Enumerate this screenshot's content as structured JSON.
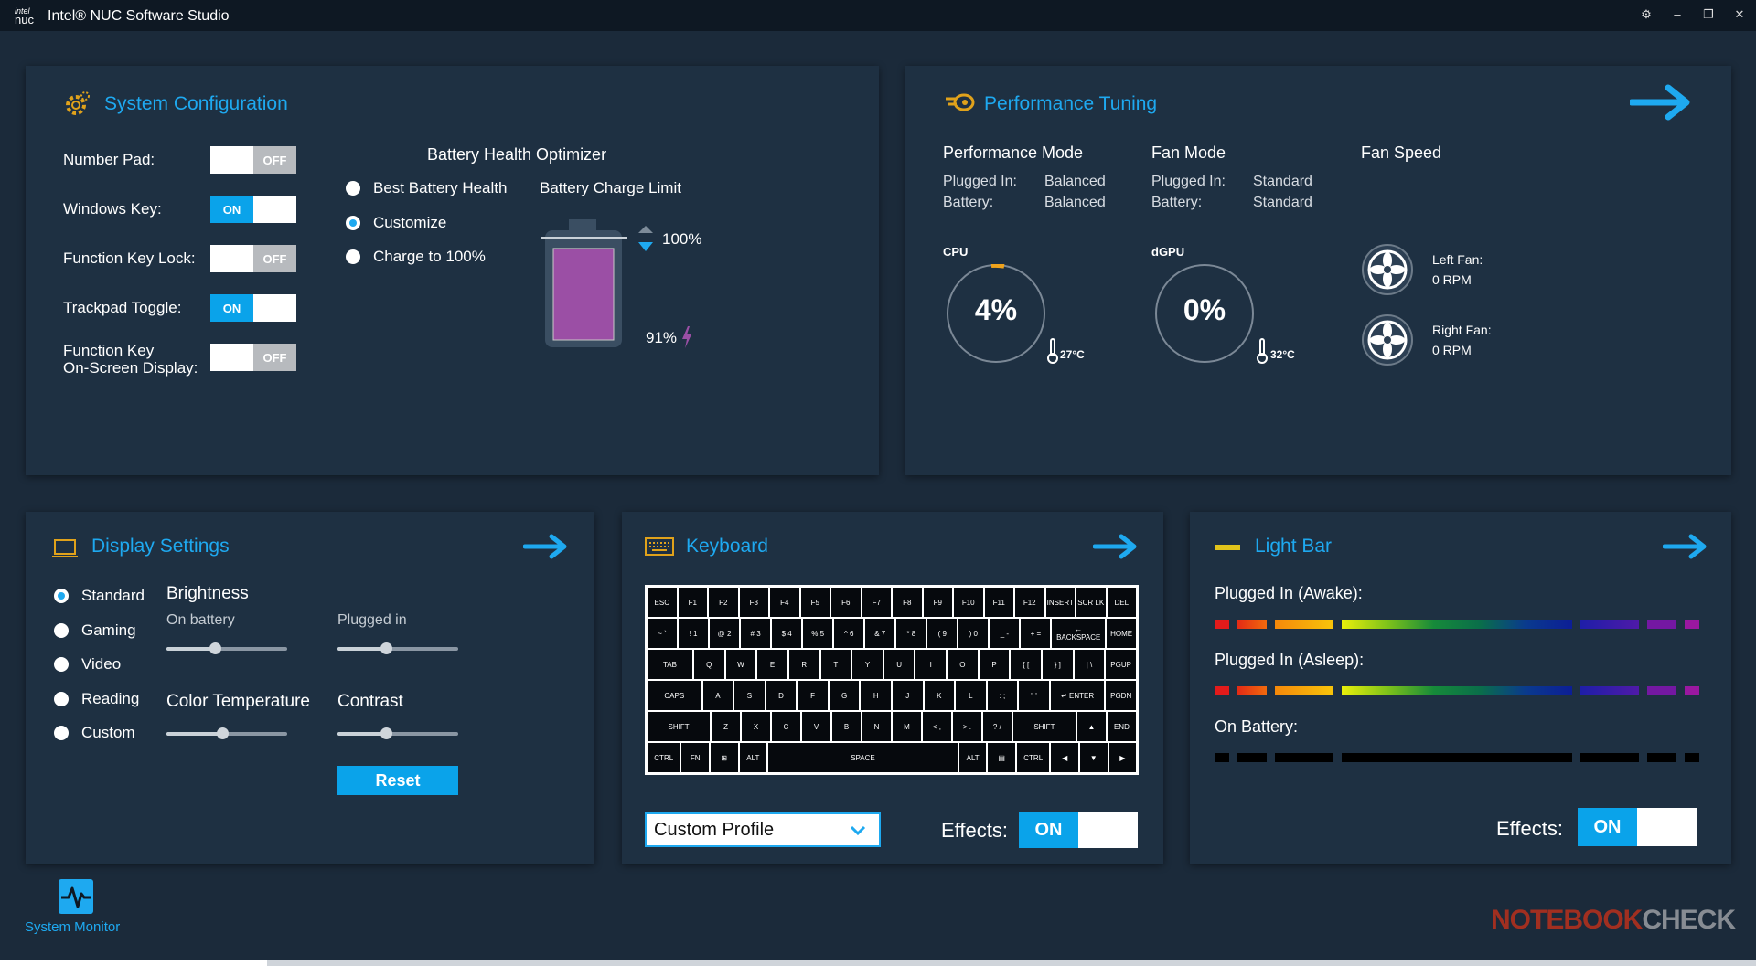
{
  "window": {
    "logo_top": "intel",
    "logo_bottom": "nuc",
    "title": "Intel® NUC Software Studio"
  },
  "system_config": {
    "title": "System Configuration",
    "toggles": [
      {
        "label": "Number Pad:",
        "state": "OFF"
      },
      {
        "label": "Windows Key:",
        "state": "ON"
      },
      {
        "label": "Function Key Lock:",
        "state": "OFF"
      },
      {
        "label": "Trackpad Toggle:",
        "state": "ON"
      },
      {
        "label_line1": "Function Key",
        "label_line2": "On-Screen Display:",
        "state": "OFF"
      }
    ],
    "battery": {
      "title": "Battery Health Optimizer",
      "options": [
        "Best Battery Health",
        "Customize",
        "Charge to 100%"
      ],
      "selected": "Customize",
      "charge_limit_label": "Battery Charge Limit",
      "limit_value": "100%",
      "current_value": "91%",
      "current_fraction": 0.91
    }
  },
  "performance": {
    "title": "Performance Tuning",
    "perf_mode": {
      "title": "Performance Mode",
      "plugged_label": "Plugged In:",
      "plugged_value": "Balanced",
      "battery_label": "Battery:",
      "battery_value": "Balanced"
    },
    "fan_mode": {
      "title": "Fan Mode",
      "plugged_label": "Plugged In:",
      "plugged_value": "Standard",
      "battery_label": "Battery:",
      "battery_value": "Standard"
    },
    "fan_speed": {
      "title": "Fan Speed",
      "left_label": "Left Fan:",
      "left_value": "0 RPM",
      "right_label": "Right Fan:",
      "right_value": "0 RPM"
    },
    "cpu": {
      "label": "CPU",
      "value": "4%",
      "temp": "27°C"
    },
    "gpu": {
      "label": "dGPU",
      "value": "0%",
      "temp": "32°C"
    }
  },
  "display": {
    "title": "Display Settings",
    "modes": [
      "Standard",
      "Gaming",
      "Video",
      "Reading",
      "Custom"
    ],
    "selected": "Standard",
    "brightness_label": "Brightness",
    "on_battery_label": "On battery",
    "plugged_in_label": "Plugged in",
    "color_temp_label": "Color Temperature",
    "contrast_label": "Contrast",
    "reset_label": "Reset",
    "levels": {
      "on_battery": 0.4,
      "plugged_in": 0.4,
      "color_temp": 0.46,
      "contrast": 0.4
    }
  },
  "keyboard": {
    "title": "Keyboard",
    "profile": "Custom Profile",
    "effects_label": "Effects:",
    "effects_state": "ON",
    "rows": [
      [
        "ESC",
        "F1",
        "F2",
        "F3",
        "F4",
        "F5",
        "F6",
        "F7",
        "F8",
        "F9",
        "F10",
        "F11",
        "F12",
        "INSERT",
        "SCR LK",
        "DEL"
      ],
      [
        "~ `",
        "! 1",
        "@ 2",
        "# 3",
        "$ 4",
        "% 5",
        "^ 6",
        "& 7",
        "* 8",
        "( 9",
        ") 0",
        "_ -",
        "+ =",
        "← BACKSPACE",
        "HOME"
      ],
      [
        "TAB",
        "Q",
        "W",
        "E",
        "R",
        "T",
        "Y",
        "U",
        "I",
        "O",
        "P",
        "{ [",
        "} ]",
        "| \\",
        "PGUP"
      ],
      [
        "CAPS",
        "A",
        "S",
        "D",
        "F",
        "G",
        "H",
        "J",
        "K",
        "L",
        ": ;",
        "\" '",
        "↵ ENTER",
        "PGDN"
      ],
      [
        "SHIFT",
        "Z",
        "X",
        "C",
        "V",
        "B",
        "N",
        "M",
        "< ,",
        "> .",
        "? /",
        "SHIFT",
        "▲",
        "END"
      ],
      [
        "CTRL",
        "FN",
        "⊞",
        "ALT",
        "SPACE",
        "ALT",
        "▤",
        "CTRL",
        "◀",
        "▼",
        "▶"
      ]
    ]
  },
  "lightbar": {
    "title": "Light Bar",
    "awake_label": "Plugged In (Awake):",
    "asleep_label": "Plugged In (Asleep):",
    "battery_label": "On Battery:",
    "effects_label": "Effects:",
    "effects_state": "ON"
  },
  "sidebar": {
    "system_monitor_label": "System Monitor"
  },
  "watermark": {
    "part1": "NOTEBOOK",
    "part2": "CHECK"
  },
  "colors": {
    "accent": "#1ea9f0",
    "panel": "#1e3042",
    "background": "#1b2a3a",
    "battery_fill": "#9b4fa5"
  }
}
